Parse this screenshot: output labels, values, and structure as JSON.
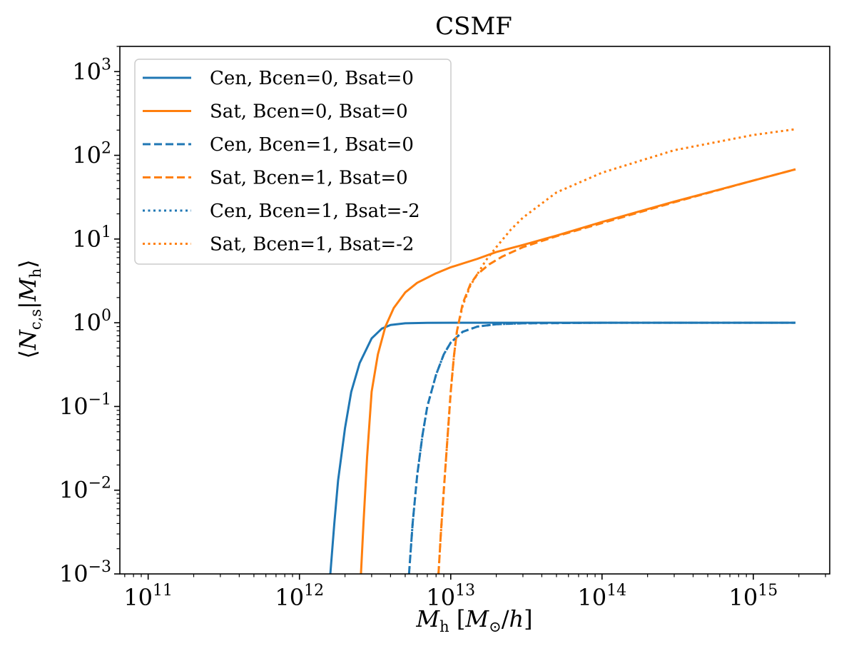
{
  "chart_data": {
    "type": "line",
    "title": "CSMF",
    "xlabel": "M_h [M_⊙/h]",
    "ylabel": "⟨N_c,s | M_h⟩",
    "xscale": "log",
    "yscale": "log",
    "xlim": [
      65000000000.0,
      3200000000000000.0
    ],
    "ylim": [
      0.001,
      2000
    ],
    "x_ticks": [
      {
        "value": 100000000000.0,
        "base": "10",
        "exp": "11"
      },
      {
        "value": 1000000000000.0,
        "base": "10",
        "exp": "12"
      },
      {
        "value": 10000000000000.0,
        "base": "10",
        "exp": "13"
      },
      {
        "value": 100000000000000.0,
        "base": "10",
        "exp": "14"
      },
      {
        "value": 1000000000000000.0,
        "base": "10",
        "exp": "15"
      }
    ],
    "y_ticks": [
      {
        "value": 0.001,
        "base": "10",
        "exp": "−3"
      },
      {
        "value": 0.01,
        "base": "10",
        "exp": "−2"
      },
      {
        "value": 0.1,
        "base": "10",
        "exp": "−1"
      },
      {
        "value": 1,
        "base": "10",
        "exp": "0"
      },
      {
        "value": 10,
        "base": "10",
        "exp": "1"
      },
      {
        "value": 100,
        "base": "10",
        "exp": "2"
      },
      {
        "value": 1000,
        "base": "10",
        "exp": "3"
      }
    ],
    "legend_position": "top-left",
    "series": [
      {
        "name": "Cen, Bcen=0, Bsat=0",
        "color": "#1f77b4",
        "style": "solid",
        "x": [
          1600000000000.0,
          1700000000000.0,
          1800000000000.0,
          2000000000000.0,
          2200000000000.0,
          2500000000000.0,
          3000000000000.0,
          3500000000000.0,
          4000000000000.0,
          5000000000000.0,
          7000000000000.0,
          10000000000000.0,
          100000000000000.0,
          1000000000000000.0,
          1900000000000000.0
        ],
        "y": [
          0.001,
          0.004,
          0.013,
          0.055,
          0.15,
          0.33,
          0.65,
          0.85,
          0.94,
          0.985,
          0.998,
          1.0,
          1.0,
          1.0,
          1.0
        ]
      },
      {
        "name": "Sat, Bcen=0, Bsat=0",
        "color": "#ff7f0e",
        "style": "solid",
        "x": [
          2550000000000.0,
          2650000000000.0,
          2800000000000.0,
          3000000000000.0,
          3300000000000.0,
          3700000000000.0,
          4200000000000.0,
          5000000000000.0,
          6000000000000.0,
          8000000000000.0,
          10000000000000.0,
          15000000000000.0,
          20000000000000.0,
          30000000000000.0,
          50000000000000.0,
          100000000000000.0,
          300000000000000.0,
          1000000000000000.0,
          1900000000000000.0
        ],
        "y": [
          0.001,
          0.004,
          0.025,
          0.15,
          0.42,
          0.9,
          1.5,
          2.3,
          3.0,
          3.9,
          4.6,
          5.8,
          7.0,
          8.5,
          11.0,
          16.0,
          28.0,
          50.0,
          68.0
        ]
      },
      {
        "name": "Cen, Bcen=1, Bsat=0",
        "color": "#1f77b4",
        "style": "dashed",
        "x": [
          5300000000000.0,
          5600000000000.0,
          6000000000000.0,
          6500000000000.0,
          7000000000000.0,
          8000000000000.0,
          9000000000000.0,
          10000000000000.0,
          12000000000000.0,
          15000000000000.0,
          20000000000000.0,
          30000000000000.0,
          100000000000000.0,
          1000000000000000.0,
          1900000000000000.0
        ],
        "y": [
          0.001,
          0.004,
          0.015,
          0.045,
          0.1,
          0.24,
          0.42,
          0.58,
          0.78,
          0.9,
          0.96,
          0.985,
          1.0,
          1.0,
          1.0
        ]
      },
      {
        "name": "Sat, Bcen=1, Bsat=0",
        "color": "#ff7f0e",
        "style": "dashed",
        "x": [
          8300000000000.0,
          8600000000000.0,
          9000000000000.0,
          9500000000000.0,
          10000000000000.0,
          10500000000000.0,
          11000000000000.0,
          12000000000000.0,
          13500000000000.0,
          15000000000000.0,
          18000000000000.0,
          22000000000000.0,
          30000000000000.0,
          50000000000000.0,
          100000000000000.0,
          300000000000000.0,
          1000000000000000.0,
          1900000000000000.0
        ],
        "y": [
          0.001,
          0.003,
          0.01,
          0.04,
          0.15,
          0.4,
          0.8,
          1.7,
          2.9,
          3.8,
          5.0,
          6.2,
          8.0,
          10.8,
          15.5,
          27.5,
          50.0,
          68.0
        ]
      },
      {
        "name": "Cen, Bcen=1, Bsat=-2",
        "color": "#1f77b4",
        "style": "dotted",
        "x": [
          5300000000000.0,
          5600000000000.0,
          6000000000000.0,
          6500000000000.0,
          7000000000000.0,
          8000000000000.0,
          9000000000000.0,
          10000000000000.0,
          12000000000000.0,
          15000000000000.0,
          20000000000000.0,
          30000000000000.0,
          100000000000000.0,
          1000000000000000.0,
          1900000000000000.0
        ],
        "y": [
          0.001,
          0.004,
          0.015,
          0.045,
          0.1,
          0.24,
          0.42,
          0.58,
          0.78,
          0.9,
          0.96,
          0.985,
          1.0,
          1.0,
          1.0
        ]
      },
      {
        "name": "Sat, Bcen=1, Bsat=-2",
        "color": "#ff7f0e",
        "style": "dotted",
        "x": [
          8300000000000.0,
          8600000000000.0,
          9000000000000.0,
          9500000000000.0,
          10000000000000.0,
          10500000000000.0,
          11000000000000.0,
          12000000000000.0,
          13500000000000.0,
          15000000000000.0,
          17000000000000.0,
          20000000000000.0,
          25000000000000.0,
          30000000000000.0,
          50000000000000.0,
          100000000000000.0,
          300000000000000.0,
          1000000000000000.0,
          1900000000000000.0
        ],
        "y": [
          0.001,
          0.003,
          0.01,
          0.04,
          0.15,
          0.4,
          0.8,
          1.6,
          2.8,
          3.8,
          5.5,
          8.0,
          13.0,
          18.0,
          36.0,
          62.0,
          115.0,
          175.0,
          205.0
        ]
      }
    ]
  }
}
